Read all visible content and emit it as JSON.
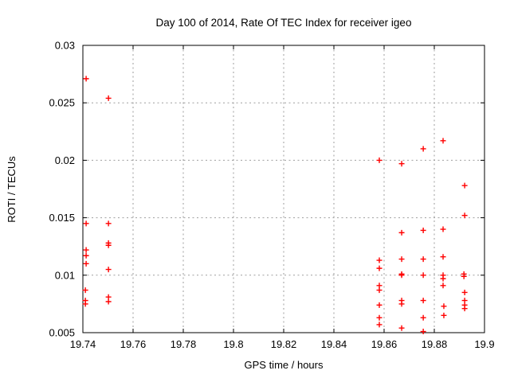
{
  "window": {
    "background": "#ffffff",
    "foreground": "#000000"
  },
  "chart_data": {
    "type": "scatter",
    "title": "Day 100 of 2014, Rate Of TEC Index for receiver igeo",
    "xlabel": "GPS time / hours",
    "ylabel": "ROTI / TECUs",
    "xlim": [
      19.74,
      19.9
    ],
    "ylim": [
      0.005,
      0.03
    ],
    "xticks": [
      {
        "v": 19.74,
        "label": "19.74"
      },
      {
        "v": 19.76,
        "label": "19.76"
      },
      {
        "v": 19.78,
        "label": "19.78"
      },
      {
        "v": 19.8,
        "label": "19.8"
      },
      {
        "v": 19.82,
        "label": "19.82"
      },
      {
        "v": 19.84,
        "label": "19.84"
      },
      {
        "v": 19.86,
        "label": "19.86"
      },
      {
        "v": 19.88,
        "label": "19.88"
      },
      {
        "v": 19.9,
        "label": "19.9"
      }
    ],
    "yticks": [
      {
        "v": 0.005,
        "label": "0.005"
      },
      {
        "v": 0.01,
        "label": "0.01"
      },
      {
        "v": 0.015,
        "label": "0.015"
      },
      {
        "v": 0.02,
        "label": "0.02"
      },
      {
        "v": 0.025,
        "label": "0.025"
      },
      {
        "v": 0.03,
        "label": "0.03"
      }
    ],
    "grid": "dashed-gray-at-every-tick",
    "legend": "none",
    "marker": "plus",
    "marker_color": "#ff0000",
    "grid_color": "#9e9e9e",
    "border_color": "#000000",
    "series": [
      {
        "name": "ROTI",
        "points": [
          [
            19.7413,
            0.0271
          ],
          [
            19.7413,
            0.0145
          ],
          [
            19.7413,
            0.0122
          ],
          [
            19.7413,
            0.0117
          ],
          [
            19.7413,
            0.011
          ],
          [
            19.741,
            0.0087
          ],
          [
            19.741,
            0.0078
          ],
          [
            19.741,
            0.0075
          ],
          [
            19.7502,
            0.0254
          ],
          [
            19.7502,
            0.0145
          ],
          [
            19.7502,
            0.0128
          ],
          [
            19.7502,
            0.0126
          ],
          [
            19.7502,
            0.0105
          ],
          [
            19.7502,
            0.0081
          ],
          [
            19.7502,
            0.0077
          ],
          [
            19.8581,
            0.02
          ],
          [
            19.8581,
            0.0113
          ],
          [
            19.8581,
            0.0106
          ],
          [
            19.8581,
            0.0091
          ],
          [
            19.8581,
            0.0087
          ],
          [
            19.8581,
            0.0074
          ],
          [
            19.8581,
            0.0063
          ],
          [
            19.8581,
            0.0057
          ],
          [
            19.867,
            0.0197
          ],
          [
            19.867,
            0.0137
          ],
          [
            19.867,
            0.0114
          ],
          [
            19.867,
            0.0101
          ],
          [
            19.867,
            0.01
          ],
          [
            19.867,
            0.0078
          ],
          [
            19.867,
            0.0075
          ],
          [
            19.867,
            0.0054
          ],
          [
            19.8756,
            0.021
          ],
          [
            19.8756,
            0.0139
          ],
          [
            19.8756,
            0.0114
          ],
          [
            19.8756,
            0.01
          ],
          [
            19.8756,
            0.0078
          ],
          [
            19.8756,
            0.0063
          ],
          [
            19.8756,
            0.0051
          ],
          [
            19.8835,
            0.0217
          ],
          [
            19.8835,
            0.014
          ],
          [
            19.8835,
            0.0116
          ],
          [
            19.8835,
            0.01
          ],
          [
            19.8835,
            0.0097
          ],
          [
            19.8835,
            0.0091
          ],
          [
            19.8838,
            0.0073
          ],
          [
            19.8838,
            0.0065
          ],
          [
            19.8921,
            0.0178
          ],
          [
            19.8921,
            0.0152
          ],
          [
            19.8918,
            0.0101
          ],
          [
            19.8918,
            0.0099
          ],
          [
            19.8921,
            0.0085
          ],
          [
            19.8921,
            0.0078
          ],
          [
            19.8921,
            0.0074
          ],
          [
            19.8921,
            0.0071
          ]
        ]
      }
    ]
  }
}
